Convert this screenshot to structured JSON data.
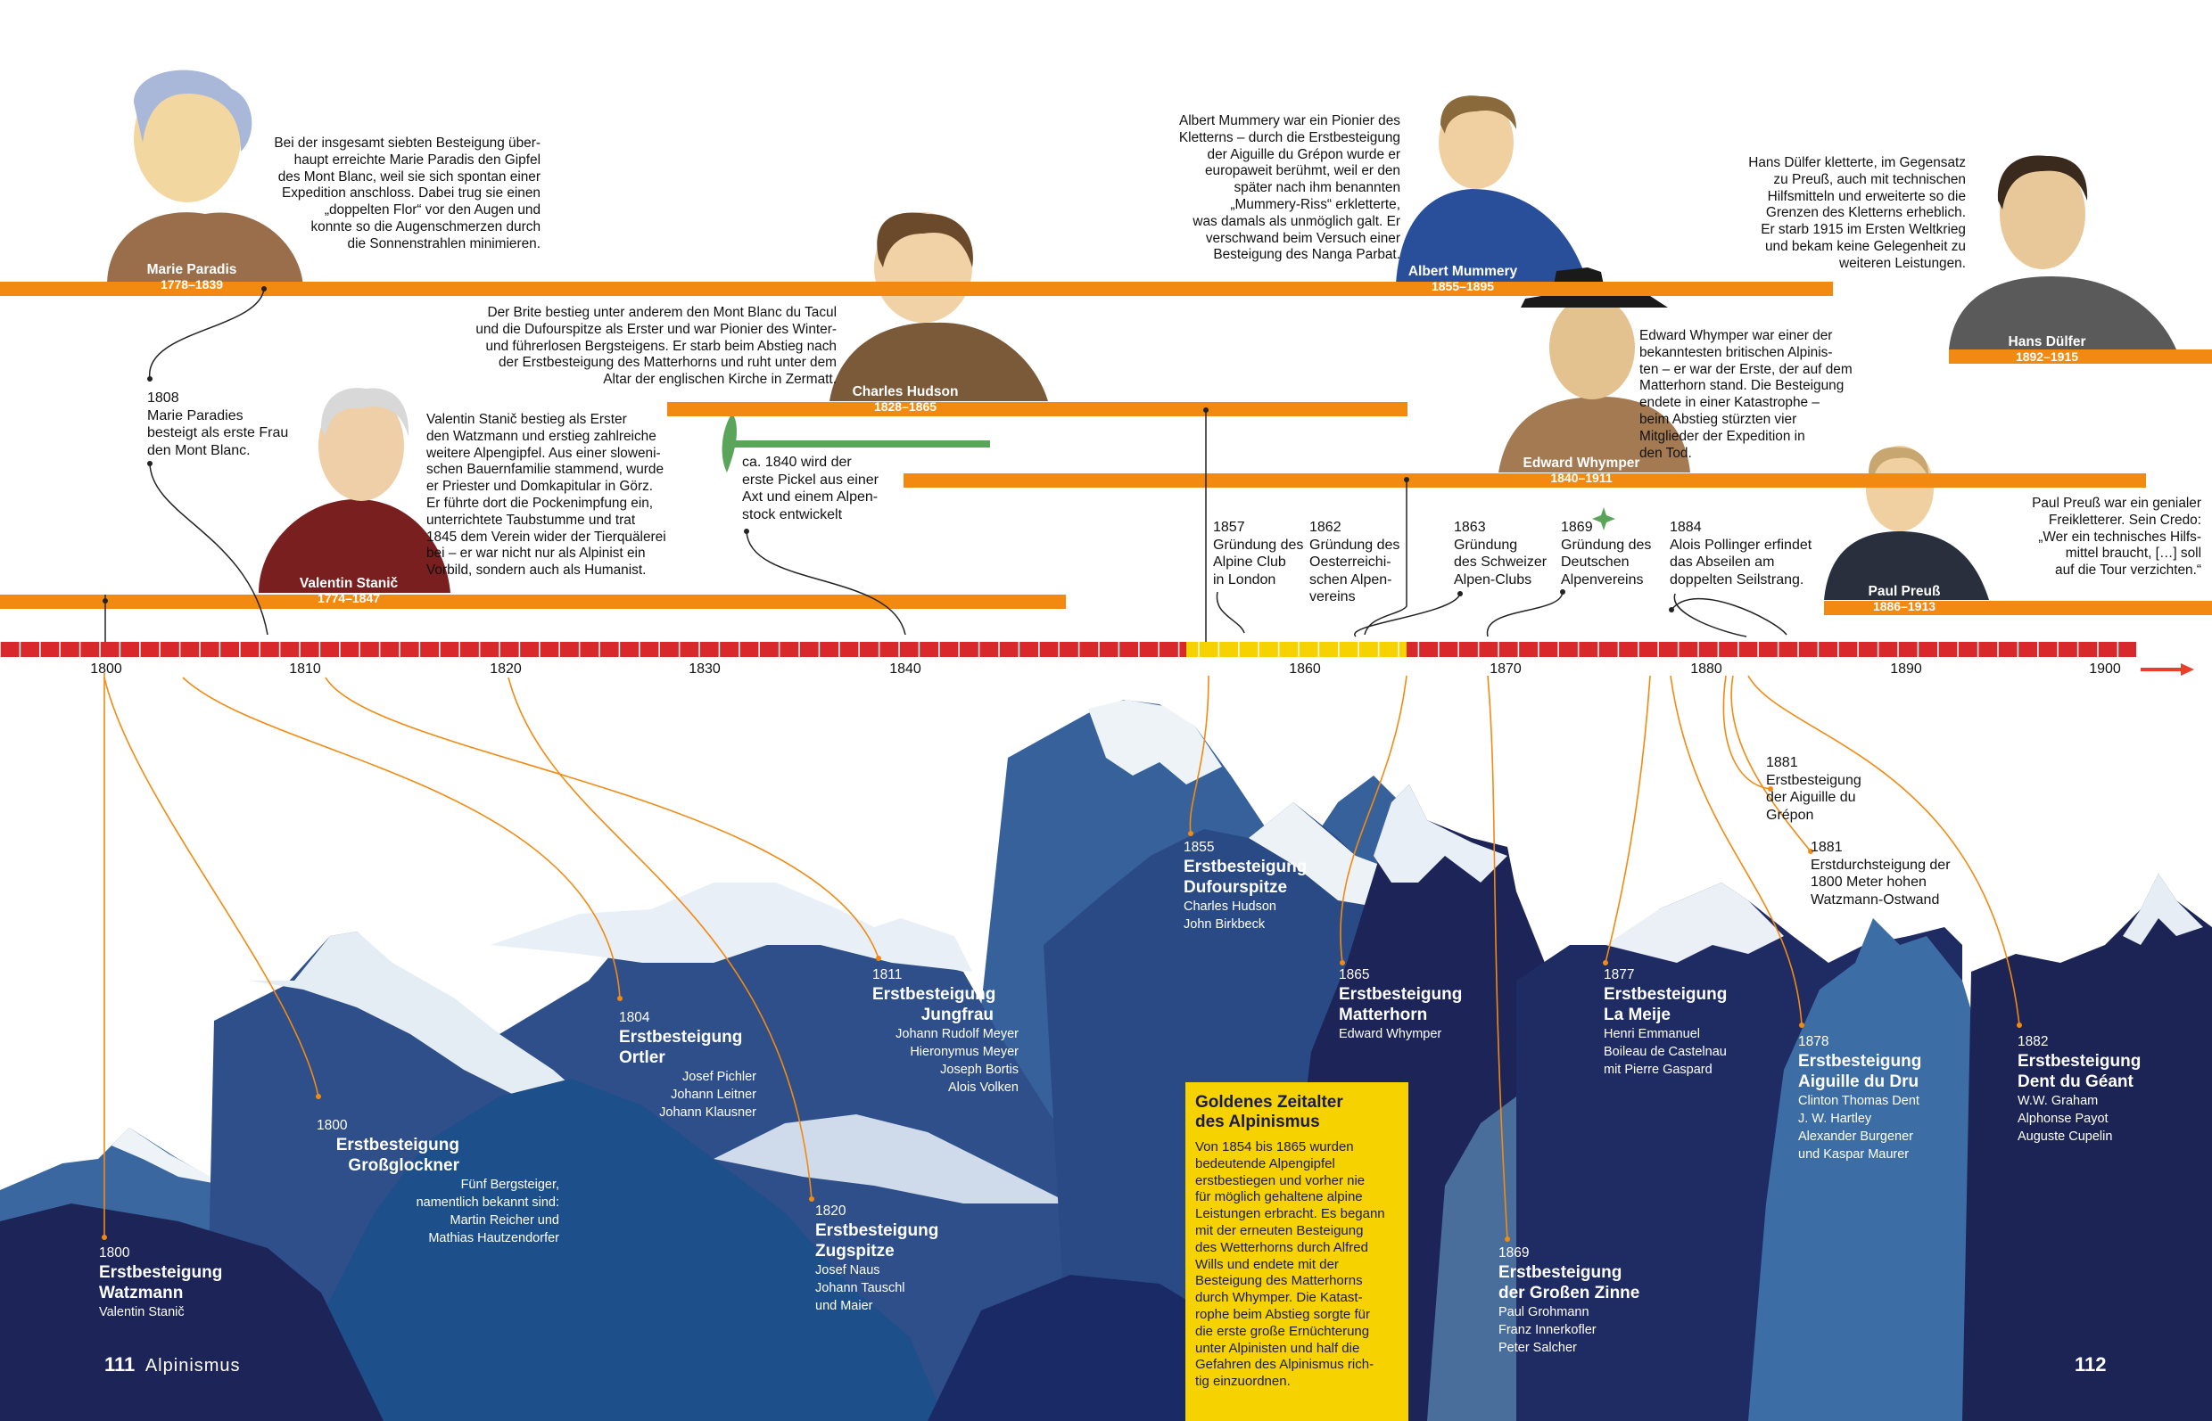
{
  "colors": {
    "orange": "#f28a12",
    "red": "#d9282b",
    "yellow": "#f6d200",
    "navy": "#1a1d4e",
    "accent_arrow": "#e8402a"
  },
  "persons": [
    {
      "name": "Marie Paradis",
      "years": "1778–1839",
      "text": "Bei der insgesamt siebten Besteigung über-\nhaupt erreichte Marie Paradis den Gipfel\ndes Mont Blanc, weil sie sich spontan einer\nExpedition anschloss. Dabei trug sie einen\n„doppelten Flor“ vor den Augen und\nkonnte so die Augenschmerzen durch\ndie Sonnenstrahlen minimieren."
    },
    {
      "name": "Valentin Stanič",
      "years": "1774–1847",
      "text": "Valentin Stanič bestieg als Erster\nden Watzmann und erstieg zahlreiche\nweitere Alpengipfel. Aus einer sloweni-\nschen Bauernfamilie stammend, wurde\ner Priester und Domkapitular in Görz.\nEr führte dort die Pockenimpfung ein,\nunterrichtete Taubstumme und trat\n1845 dem Verein wider der Tierquälerei\nbei – er war nicht nur als Alpinist ein\nVorbild, sondern auch als Humanist."
    },
    {
      "name": "Charles Hudson",
      "years": "1828–1865",
      "text": "Der Brite bestieg unter anderem den Mont Blanc du Tacul\nund die Dufourspitze als Erster und war Pionier des Winter-\nund führerlosen Bergsteigens. Er starb beim Abstieg nach\nder Erstbesteigung des Matterhorns und ruht unter dem\nAltar der englischen Kirche in Zermatt."
    },
    {
      "name": "Albert Mummery",
      "years": "1855–1895",
      "text": "Albert Mummery war ein Pionier des\nKletterns – durch die Erstbesteigung\nder Aiguille du Grépon wurde er\neuropaweit berühmt, weil er den\nspäter nach ihm benannten\n„Mummery-Riss“ erkletterte,\nwas damals als unmöglich galt. Er\nverschwand beim Versuch einer\nBesteigung des Nanga Parbat."
    },
    {
      "name": "Edward Whymper",
      "years": "1840–1911",
      "text": "Edward Whymper war einer der\nbekanntesten britischen Alpinis-\nten – er war der Erste, der auf dem\nMatterhorn stand. Die Besteigung\nendete in einer Katastrophe –\nbeim Abstieg stürzten vier\nMitglieder der Expedition in\nden Tod."
    },
    {
      "name": "Hans Dülfer",
      "years": "1892–1915",
      "text": "Hans Dülfer kletterte, im Gegensatz\nzu Preuß, auch mit technischen\nHilfsmitteln und erweiterte so die\nGrenzen des Kletterns erheblich.\nEr starb 1915 im Ersten Weltkrieg\nund bekam keine Gelegenheit zu\nweiteren Leistungen."
    },
    {
      "name": "Paul Preuß",
      "years": "1886–1913",
      "text": "Paul Preuß war ein genialer\nFreikletterer. Sein Credo:\n„Wer ein technisches Hilfs-\nmittel braucht, […] soll\nauf die Tour verzichten.“"
    }
  ],
  "events": [
    {
      "year": "1808",
      "text": "Marie Paradies\nbesteigt als erste Frau\nden Mont Blanc."
    },
    {
      "year": "",
      "text": "ca. 1840 wird der\nerste Pickel aus einer\nAxt und einem Alpen-\nstock entwickelt"
    },
    {
      "year": "1857",
      "text": "Gründung des\nAlpine Club\nin London"
    },
    {
      "year": "1862",
      "text": "Gründung des\nOesterreichi-\nschen Alpen-\nvereins"
    },
    {
      "year": "1863",
      "text": "Gründung\ndes Schweizer\nAlpen-Clubs"
    },
    {
      "year": "1869",
      "text": "Gründung des\nDeutschen\nAlpenvereins"
    },
    {
      "year": "1884",
      "text": "Alois Pollinger erfindet\ndas Abseilen am\ndoppelten Seilstrang."
    },
    {
      "year": "1881",
      "text": "Erstbesteigung\nder Aiguille du\nGrépon"
    },
    {
      "year": "1881",
      "text": "Erstdurchsteigung der\n1800 Meter hohen\nWatzmann-Ostwand"
    }
  ],
  "axis_ticks": [
    "1800",
    "1810",
    "1820",
    "1830",
    "1840",
    "1860",
    "1870",
    "1880",
    "1890",
    "1900"
  ],
  "peaks": [
    {
      "year": "1800",
      "title": "Erstbesteigung\nWatzmann",
      "people": "Valentin Stanič"
    },
    {
      "year": "1800",
      "title": "Erstbesteigung\nGroßglockner",
      "people": "Fünf Bergsteiger,\nnamentlich bekannt sind:\nMartin Reicher und\nMathias Hautzendorfer"
    },
    {
      "year": "1804",
      "title": "Erstbesteigung\nOrtler",
      "people": "Josef Pichler\nJohann Leitner\nJohann Klausner"
    },
    {
      "year": "1811",
      "title": "Erstbesteigung\nJungfrau",
      "people": "Johann Rudolf Meyer\nHieronymus Meyer\nJoseph Bortis\nAlois Volken"
    },
    {
      "year": "1820",
      "title": "Erstbesteigung\nZugspitze",
      "people": "Josef Naus\nJohann Tauschl\nund Maier"
    },
    {
      "year": "1855",
      "title": "Erstbesteigung\nDufourspitze",
      "people": "Charles Hudson\nJohn Birkbeck"
    },
    {
      "year": "1865",
      "title": "Erstbesteigung\nMatterhorn",
      "people": "Edward Whymper"
    },
    {
      "year": "1869",
      "title": "Erstbesteigung\nder Großen Zinne",
      "people": "Paul Grohmann\nFranz Innerkofler\nPeter Salcher"
    },
    {
      "year": "1877",
      "title": "Erstbesteigung\nLa Meije",
      "people": "Henri Emmanuel\nBoileau de Castelnau\nmit Pierre Gaspard"
    },
    {
      "year": "1878",
      "title": "Erstbesteigung\nAiguille du Dru",
      "people": "Clinton Thomas Dent\nJ. W. Hartley\nAlexander Burgener\nund Kaspar Maurer"
    },
    {
      "year": "1882",
      "title": "Erstbesteigung\nDent du Géant",
      "people": "W.W. Graham\nAlphonse Payot\nAuguste Cupelin"
    }
  ],
  "golden_age": {
    "title": "Goldenes Zeitalter\ndes Alpinismus",
    "text": "Von 1854 bis 1865 wurden\nbedeutende Alpengipfel\nerstbestiegen und vorher nie\nfür möglich gehaltene alpine\nLeistungen erbracht. Es begann\nmit der erneuten Besteigung\ndes Wetterhorns durch Alfred\nWills und endete mit der\nBesteigung des Matterhorns\ndurch Whymper. Die Katast-\nrophe beim Abstieg sorgte für\ndie erste große Ernüchterung\nunter Alpinisten und half die\nGefahren des Alpinismus rich-\ntig einzuordnen."
  },
  "footer": {
    "left_page": "111",
    "left_title": "Alpinismus",
    "right_page": "112"
  }
}
